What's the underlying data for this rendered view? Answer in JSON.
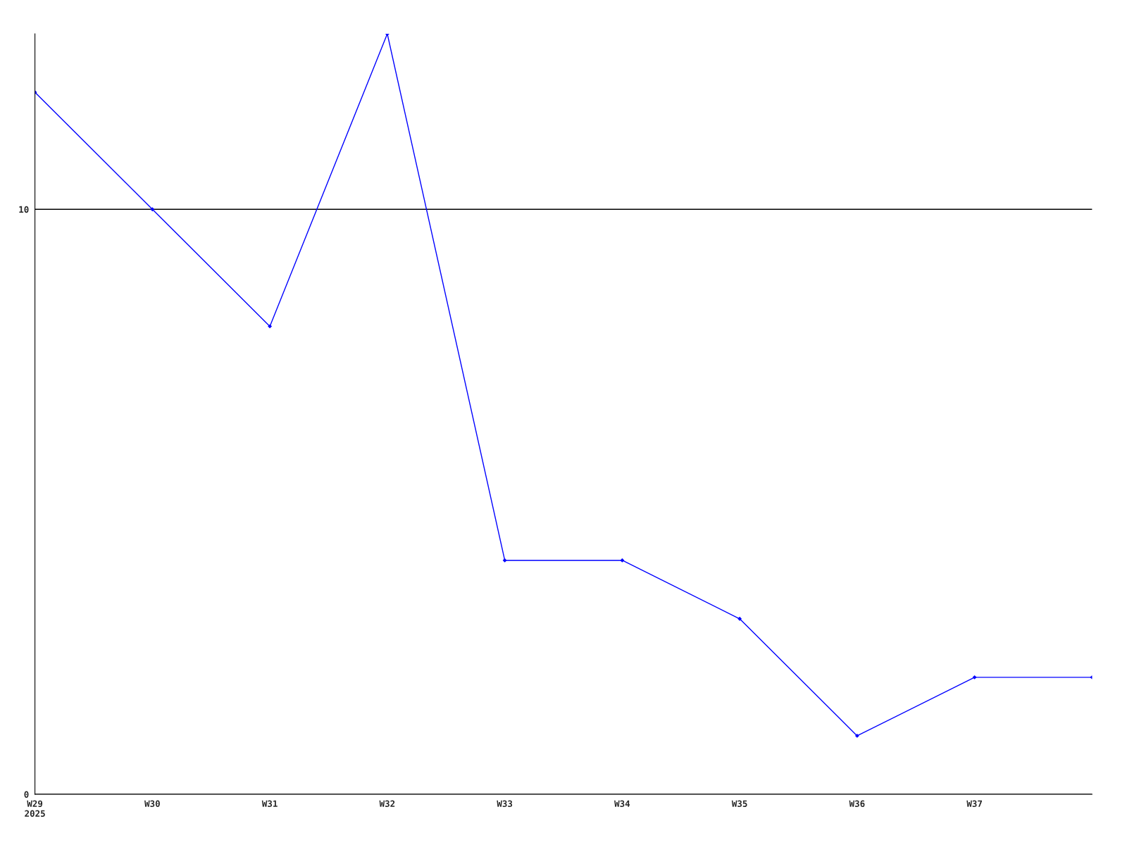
{
  "chart_data": {
    "type": "line",
    "categories": [
      "W29\n2025",
      "W30",
      "W31",
      "W32",
      "W33",
      "W34",
      "W35",
      "W36",
      "W37",
      null
    ],
    "series": [
      {
        "color": "#0000ff",
        "values": [
          12,
          10,
          8,
          13,
          4,
          4,
          3,
          1,
          2,
          2
        ]
      }
    ],
    "ylim": [
      0,
      13
    ],
    "yticks": [
      0,
      10
    ],
    "grid": "y",
    "marker": "diamond",
    "line_style": "solid"
  }
}
